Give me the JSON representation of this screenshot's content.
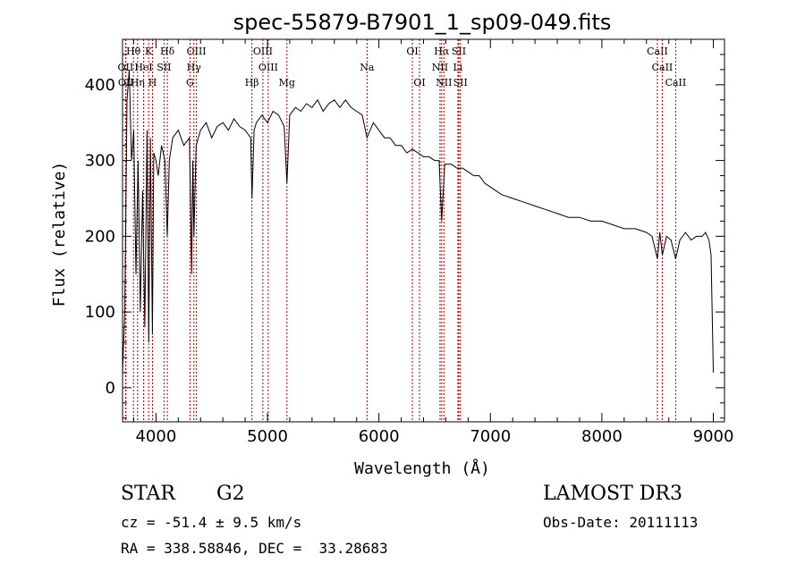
{
  "chart_data": {
    "type": "line",
    "title": "spec-55879-B7901_1_sp09-049.fits",
    "xlabel": "Wavelength (Å)",
    "ylabel": "Flux (relative)",
    "xlim": [
      3700,
      9100
    ],
    "ylim": [
      -45,
      460
    ],
    "xticks": [
      4000,
      5000,
      6000,
      7000,
      8000,
      9000
    ],
    "yticks": [
      0,
      100,
      200,
      300,
      400
    ],
    "series": [
      {
        "name": "flux",
        "x": [
          3700,
          3720,
          3740,
          3760,
          3780,
          3800,
          3820,
          3840,
          3860,
          3880,
          3900,
          3920,
          3935,
          3950,
          3968,
          3980,
          4000,
          4020,
          4050,
          4080,
          4101,
          4120,
          4150,
          4200,
          4250,
          4300,
          4320,
          4330,
          4340,
          4360,
          4400,
          4450,
          4500,
          4550,
          4600,
          4650,
          4700,
          4750,
          4800,
          4850,
          4861,
          4880,
          4900,
          4950,
          5000,
          5050,
          5100,
          5150,
          5175,
          5200,
          5250,
          5300,
          5350,
          5400,
          5450,
          5500,
          5550,
          5600,
          5650,
          5700,
          5750,
          5800,
          5850,
          5893,
          5950,
          6000,
          6050,
          6100,
          6150,
          6200,
          6250,
          6300,
          6350,
          6400,
          6450,
          6500,
          6540,
          6563,
          6590,
          6650,
          6700,
          6750,
          6800,
          6850,
          6900,
          6950,
          7000,
          7100,
          7200,
          7300,
          7400,
          7500,
          7600,
          7700,
          7800,
          7900,
          8000,
          8100,
          8200,
          8300,
          8400,
          8450,
          8498,
          8520,
          8542,
          8580,
          8620,
          8662,
          8700,
          8750,
          8800,
          8850,
          8900,
          8930,
          8960,
          8980,
          9000
        ],
        "values": [
          20,
          100,
          380,
          420,
          300,
          340,
          150,
          300,
          100,
          260,
          80,
          340,
          60,
          330,
          70,
          310,
          300,
          280,
          320,
          300,
          200,
          300,
          330,
          340,
          320,
          330,
          150,
          300,
          200,
          320,
          340,
          350,
          330,
          345,
          350,
          340,
          355,
          345,
          340,
          330,
          250,
          340,
          350,
          360,
          350,
          365,
          360,
          345,
          270,
          360,
          370,
          365,
          375,
          370,
          380,
          365,
          375,
          380,
          370,
          380,
          370,
          365,
          360,
          330,
          350,
          340,
          330,
          330,
          320,
          320,
          310,
          315,
          310,
          305,
          305,
          300,
          300,
          220,
          295,
          295,
          290,
          290,
          285,
          280,
          280,
          270,
          265,
          255,
          250,
          245,
          240,
          235,
          230,
          225,
          225,
          220,
          220,
          215,
          210,
          210,
          205,
          200,
          170,
          205,
          175,
          200,
          195,
          170,
          195,
          205,
          195,
          200,
          200,
          205,
          195,
          175,
          20
        ]
      }
    ],
    "lines": [
      {
        "label": "Hθ",
        "wave": 3798,
        "row": 0
      },
      {
        "label": "K",
        "wave": 3934,
        "row": 0
      },
      {
        "label": "Hδ",
        "wave": 4102,
        "row": 0
      },
      {
        "label": "OIII",
        "wave": 4363,
        "row": 0
      },
      {
        "label": "OIII",
        "wave": 4959,
        "row": 0
      },
      {
        "label": "OI",
        "wave": 6300,
        "row": 0
      },
      {
        "label": "Hα",
        "wave": 6563,
        "row": 0
      },
      {
        "label": "SII",
        "wave": 6717,
        "row": 0
      },
      {
        "label": "CaII",
        "wave": 8498,
        "row": 0
      },
      {
        "label": "OII",
        "wave": 3727,
        "row": 1
      },
      {
        "label": "HeI",
        "wave": 3889,
        "row": 1
      },
      {
        "label": "SII",
        "wave": 4072,
        "row": 1
      },
      {
        "label": "Hγ",
        "wave": 4340,
        "row": 1
      },
      {
        "label": "OIII",
        "wave": 5007,
        "row": 1
      },
      {
        "label": "NII",
        "wave": 6548,
        "row": 1
      },
      {
        "label": "Li",
        "wave": 6708,
        "row": 1
      },
      {
        "label": "CaII",
        "wave": 8542,
        "row": 1
      },
      {
        "label": "OII",
        "wave": 3730,
        "row": 2
      },
      {
        "label": "Hη",
        "wave": 3835,
        "row": 2
      },
      {
        "label": "H",
        "wave": 3969,
        "row": 2
      },
      {
        "label": "G",
        "wave": 4305,
        "row": 2
      },
      {
        "label": "Hβ",
        "wave": 4861,
        "row": 2
      },
      {
        "label": "Mg",
        "wave": 5175,
        "row": 2
      },
      {
        "label": "Na",
        "wave": 5893,
        "row": 1
      },
      {
        "label": "OI",
        "wave": 6364,
        "row": 2
      },
      {
        "label": "NII",
        "wave": 6583,
        "row": 2
      },
      {
        "label": "SII",
        "wave": 6731,
        "row": 2
      },
      {
        "label": "CaII",
        "wave": 8662,
        "row": 2
      }
    ],
    "colors": {
      "axis": "#000000",
      "series": "#000000",
      "marker": "#b00000"
    }
  },
  "info": {
    "object_class": "STAR",
    "subclass": "G2",
    "survey": "LAMOST DR3",
    "cz": "cz = -51.4 ± 9.5 km/s",
    "obs_date": "Obs-Date: 20111113",
    "coords": "RA = 338.58846, DEC =  33.28683"
  }
}
